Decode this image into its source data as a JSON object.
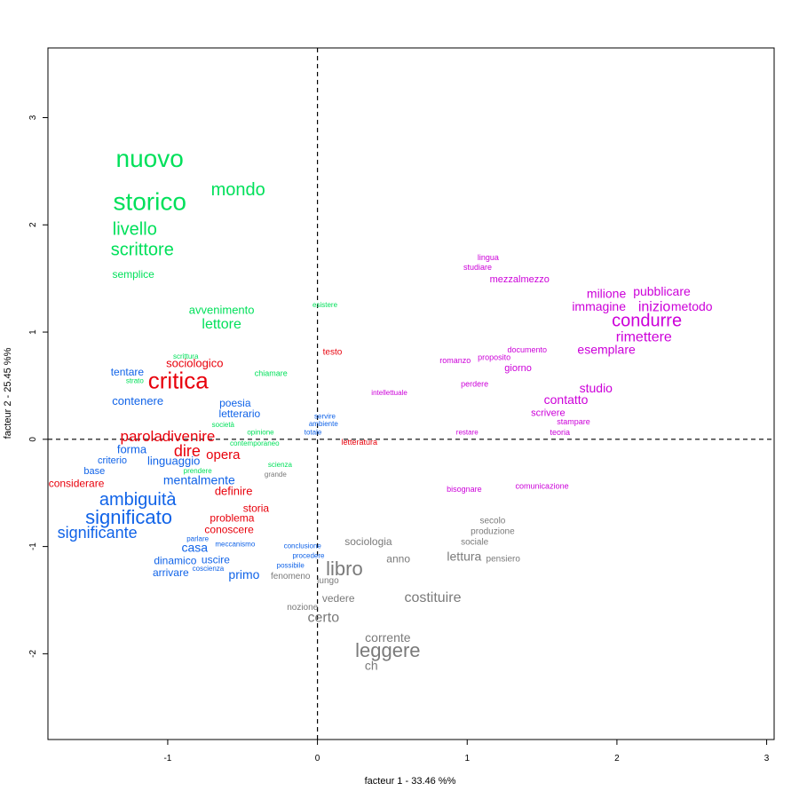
{
  "chart_data": {
    "type": "scatter",
    "xlabel": "facteur  1  - 33.46 %%",
    "ylabel": "facteur  2  - 25.45 %%",
    "xlim": [
      -1.8,
      3.05
    ],
    "ylim": [
      -2.8,
      3.65
    ],
    "x_ticks": [
      "-1",
      "0",
      "1",
      "2",
      "3"
    ],
    "y_ticks": [
      "-2",
      "-1",
      "0",
      "1",
      "2",
      "3"
    ],
    "reference_lines": {
      "x": 0,
      "y": 0,
      "style": "dashed"
    },
    "grid": false,
    "colors": {
      "green": "#00e05a",
      "red": "#e8000b",
      "blue": "#1063e8",
      "magenta": "#cc00d9",
      "gray": "#7a7a7a"
    },
    "points": [
      {
        "label": "nuovo",
        "x": -1.12,
        "y": 2.6,
        "size": 28,
        "color": "green"
      },
      {
        "label": "storico",
        "x": -1.12,
        "y": 2.2,
        "size": 28,
        "color": "green"
      },
      {
        "label": "mondo",
        "x": -0.53,
        "y": 2.32,
        "size": 20,
        "color": "green"
      },
      {
        "label": "livello",
        "x": -1.22,
        "y": 1.95,
        "size": 20,
        "color": "green"
      },
      {
        "label": "scrittore",
        "x": -1.17,
        "y": 1.76,
        "size": 20,
        "color": "green"
      },
      {
        "label": "semplice",
        "x": -1.23,
        "y": 1.53,
        "size": 12,
        "color": "green"
      },
      {
        "label": "avvenimento",
        "x": -0.64,
        "y": 1.2,
        "size": 13,
        "color": "green"
      },
      {
        "label": "lettore",
        "x": -0.64,
        "y": 1.07,
        "size": 16,
        "color": "green"
      },
      {
        "label": "esistere",
        "x": 0.05,
        "y": 1.25,
        "size": 8,
        "color": "green"
      },
      {
        "label": "scrittura",
        "x": -0.88,
        "y": 0.77,
        "size": 8,
        "color": "green"
      },
      {
        "label": "strato",
        "x": -1.22,
        "y": 0.54,
        "size": 8,
        "color": "green"
      },
      {
        "label": "chiamare",
        "x": -0.31,
        "y": 0.61,
        "size": 9,
        "color": "green"
      },
      {
        "label": "società",
        "x": -0.63,
        "y": 0.13,
        "size": 8,
        "color": "green"
      },
      {
        "label": "opinione",
        "x": -0.38,
        "y": 0.06,
        "size": 8,
        "color": "green"
      },
      {
        "label": "contemporaneo",
        "x": -0.42,
        "y": -0.04,
        "size": 8,
        "color": "green"
      },
      {
        "label": "prendere",
        "x": -0.8,
        "y": -0.3,
        "size": 8,
        "color": "green"
      },
      {
        "label": "scienza",
        "x": -0.25,
        "y": -0.24,
        "size": 8,
        "color": "green"
      },
      {
        "label": "critica",
        "x": -0.93,
        "y": 0.53,
        "size": 26,
        "color": "red"
      },
      {
        "label": "sociologico",
        "x": -0.82,
        "y": 0.7,
        "size": 13,
        "color": "red"
      },
      {
        "label": "testo",
        "x": 0.1,
        "y": 0.81,
        "size": 10,
        "color": "red"
      },
      {
        "label": "paroladivenire",
        "x": -1.0,
        "y": 0.02,
        "size": 17,
        "color": "red"
      },
      {
        "label": "dire",
        "x": -0.87,
        "y": -0.12,
        "size": 18,
        "color": "red"
      },
      {
        "label": "opera",
        "x": -0.63,
        "y": -0.15,
        "size": 15,
        "color": "red"
      },
      {
        "label": "letteratura",
        "x": 0.28,
        "y": -0.03,
        "size": 9,
        "color": "red"
      },
      {
        "label": "considerare",
        "x": -1.61,
        "y": -0.42,
        "size": 12,
        "color": "red"
      },
      {
        "label": "definire",
        "x": -0.56,
        "y": -0.49,
        "size": 13,
        "color": "red"
      },
      {
        "label": "storia",
        "x": -0.41,
        "y": -0.65,
        "size": 12,
        "color": "red"
      },
      {
        "label": "problema",
        "x": -0.57,
        "y": -0.74,
        "size": 12,
        "color": "red"
      },
      {
        "label": "conoscere",
        "x": -0.59,
        "y": -0.85,
        "size": 12,
        "color": "red"
      },
      {
        "label": "tentare",
        "x": -1.27,
        "y": 0.62,
        "size": 12,
        "color": "blue"
      },
      {
        "label": "contenere",
        "x": -1.2,
        "y": 0.35,
        "size": 13,
        "color": "blue"
      },
      {
        "label": "poesia",
        "x": -0.55,
        "y": 0.33,
        "size": 12,
        "color": "blue"
      },
      {
        "label": "letterario",
        "x": -0.52,
        "y": 0.23,
        "size": 12,
        "color": "blue"
      },
      {
        "label": "servire",
        "x": 0.05,
        "y": 0.21,
        "size": 8,
        "color": "blue"
      },
      {
        "label": "ambiente",
        "x": 0.04,
        "y": 0.14,
        "size": 8,
        "color": "blue"
      },
      {
        "label": "totale",
        "x": -0.03,
        "y": 0.06,
        "size": 8,
        "color": "blue"
      },
      {
        "label": "forma",
        "x": -1.24,
        "y": -0.1,
        "size": 13,
        "color": "blue"
      },
      {
        "label": "criterio",
        "x": -1.37,
        "y": -0.2,
        "size": 11,
        "color": "blue"
      },
      {
        "label": "linguaggio",
        "x": -0.96,
        "y": -0.21,
        "size": 13,
        "color": "blue"
      },
      {
        "label": "base",
        "x": -1.49,
        "y": -0.3,
        "size": 11,
        "color": "blue"
      },
      {
        "label": "mentalmente",
        "x": -0.79,
        "y": -0.39,
        "size": 14,
        "color": "blue"
      },
      {
        "label": "ambiguità",
        "x": -1.2,
        "y": -0.57,
        "size": 20,
        "color": "blue"
      },
      {
        "label": "significato",
        "x": -1.26,
        "y": -0.74,
        "size": 22,
        "color": "blue"
      },
      {
        "label": "significante",
        "x": -1.47,
        "y": -0.88,
        "size": 18,
        "color": "blue"
      },
      {
        "label": "parlare",
        "x": -0.8,
        "y": -0.93,
        "size": 8,
        "color": "blue"
      },
      {
        "label": "meccanismo",
        "x": -0.55,
        "y": -0.98,
        "size": 8,
        "color": "blue"
      },
      {
        "label": "casa",
        "x": -0.82,
        "y": -1.02,
        "size": 14,
        "color": "blue"
      },
      {
        "label": "dinamico",
        "x": -0.95,
        "y": -1.14,
        "size": 12,
        "color": "blue"
      },
      {
        "label": "uscire",
        "x": -0.68,
        "y": -1.13,
        "size": 12,
        "color": "blue"
      },
      {
        "label": "coscienza",
        "x": -0.73,
        "y": -1.21,
        "size": 8,
        "color": "blue"
      },
      {
        "label": "arrivare",
        "x": -0.98,
        "y": -1.25,
        "size": 12,
        "color": "blue"
      },
      {
        "label": "primo",
        "x": -0.49,
        "y": -1.27,
        "size": 14,
        "color": "blue"
      },
      {
        "label": "conclusione",
        "x": -0.1,
        "y": -1.0,
        "size": 8,
        "color": "blue"
      },
      {
        "label": "procedere",
        "x": -0.06,
        "y": -1.09,
        "size": 8,
        "color": "blue"
      },
      {
        "label": "possibile",
        "x": -0.18,
        "y": -1.18,
        "size": 8,
        "color": "blue"
      },
      {
        "label": "lingua",
        "x": 1.14,
        "y": 1.69,
        "size": 9,
        "color": "magenta"
      },
      {
        "label": "studiare",
        "x": 1.07,
        "y": 1.6,
        "size": 9,
        "color": "magenta"
      },
      {
        "label": "mezzalmezzo",
        "x": 1.35,
        "y": 1.49,
        "size": 11,
        "color": "magenta"
      },
      {
        "label": "milione",
        "x": 1.93,
        "y": 1.35,
        "size": 14,
        "color": "magenta"
      },
      {
        "label": "pubblicare",
        "x": 2.3,
        "y": 1.37,
        "size": 14,
        "color": "magenta"
      },
      {
        "label": "immagine",
        "x": 1.88,
        "y": 1.23,
        "size": 14,
        "color": "magenta"
      },
      {
        "label": "inizio",
        "x": 2.25,
        "y": 1.23,
        "size": 16,
        "color": "magenta"
      },
      {
        "label": "metodo",
        "x": 2.5,
        "y": 1.23,
        "size": 14,
        "color": "magenta"
      },
      {
        "label": "condurre",
        "x": 2.2,
        "y": 1.1,
        "size": 20,
        "color": "magenta"
      },
      {
        "label": "rimettere",
        "x": 2.18,
        "y": 0.95,
        "size": 16,
        "color": "magenta"
      },
      {
        "label": "esemplare",
        "x": 1.93,
        "y": 0.83,
        "size": 14,
        "color": "magenta"
      },
      {
        "label": "documento",
        "x": 1.4,
        "y": 0.83,
        "size": 9,
        "color": "magenta"
      },
      {
        "label": "proposito",
        "x": 1.18,
        "y": 0.76,
        "size": 9,
        "color": "magenta"
      },
      {
        "label": "romanzo",
        "x": 0.92,
        "y": 0.73,
        "size": 9,
        "color": "magenta"
      },
      {
        "label": "giorno",
        "x": 1.34,
        "y": 0.66,
        "size": 11,
        "color": "magenta"
      },
      {
        "label": "perdere",
        "x": 1.05,
        "y": 0.51,
        "size": 9,
        "color": "magenta"
      },
      {
        "label": "intellettuale",
        "x": 0.48,
        "y": 0.43,
        "size": 8,
        "color": "magenta"
      },
      {
        "label": "studio",
        "x": 1.86,
        "y": 0.47,
        "size": 14,
        "color": "magenta"
      },
      {
        "label": "contatto",
        "x": 1.66,
        "y": 0.36,
        "size": 14,
        "color": "magenta"
      },
      {
        "label": "scrivere",
        "x": 1.54,
        "y": 0.24,
        "size": 11,
        "color": "magenta"
      },
      {
        "label": "stampare",
        "x": 1.71,
        "y": 0.16,
        "size": 9,
        "color": "magenta"
      },
      {
        "label": "teoria",
        "x": 1.62,
        "y": 0.06,
        "size": 9,
        "color": "magenta"
      },
      {
        "label": "restare",
        "x": 1.0,
        "y": 0.06,
        "size": 8,
        "color": "magenta"
      },
      {
        "label": "bisognare",
        "x": 0.98,
        "y": -0.47,
        "size": 9,
        "color": "magenta"
      },
      {
        "label": "comunicazione",
        "x": 1.5,
        "y": -0.44,
        "size": 9,
        "color": "magenta"
      },
      {
        "label": "grande",
        "x": -0.28,
        "y": -0.33,
        "size": 8,
        "color": "gray"
      },
      {
        "label": "secolo",
        "x": 1.17,
        "y": -0.76,
        "size": 10,
        "color": "gray"
      },
      {
        "label": "produzione",
        "x": 1.17,
        "y": -0.86,
        "size": 10,
        "color": "gray"
      },
      {
        "label": "sociale",
        "x": 1.05,
        "y": -0.96,
        "size": 10,
        "color": "gray"
      },
      {
        "label": "sociologia",
        "x": 0.34,
        "y": -0.96,
        "size": 12,
        "color": "gray"
      },
      {
        "label": "lettura",
        "x": 0.98,
        "y": -1.1,
        "size": 14,
        "color": "gray"
      },
      {
        "label": "pensiero",
        "x": 1.24,
        "y": -1.12,
        "size": 10,
        "color": "gray"
      },
      {
        "label": "anno",
        "x": 0.54,
        "y": -1.12,
        "size": 12,
        "color": "gray"
      },
      {
        "label": "libro",
        "x": 0.18,
        "y": -1.22,
        "size": 22,
        "color": "gray"
      },
      {
        "label": "fenomeno",
        "x": -0.18,
        "y": -1.28,
        "size": 10,
        "color": "gray"
      },
      {
        "label": "lungo",
        "x": 0.07,
        "y": -1.32,
        "size": 10,
        "color": "gray"
      },
      {
        "label": "costituire",
        "x": 0.77,
        "y": -1.48,
        "size": 16,
        "color": "gray"
      },
      {
        "label": "vedere",
        "x": 0.14,
        "y": -1.49,
        "size": 12,
        "color": "gray"
      },
      {
        "label": "nozione",
        "x": -0.1,
        "y": -1.57,
        "size": 10,
        "color": "gray"
      },
      {
        "label": "certo",
        "x": 0.04,
        "y": -1.67,
        "size": 16,
        "color": "gray"
      },
      {
        "label": "corrente",
        "x": 0.47,
        "y": -1.86,
        "size": 14,
        "color": "gray"
      },
      {
        "label": "leggere",
        "x": 0.47,
        "y": -1.98,
        "size": 22,
        "color": "gray"
      },
      {
        "label": "ch",
        "x": 0.36,
        "y": -2.12,
        "size": 14,
        "color": "gray"
      }
    ]
  }
}
